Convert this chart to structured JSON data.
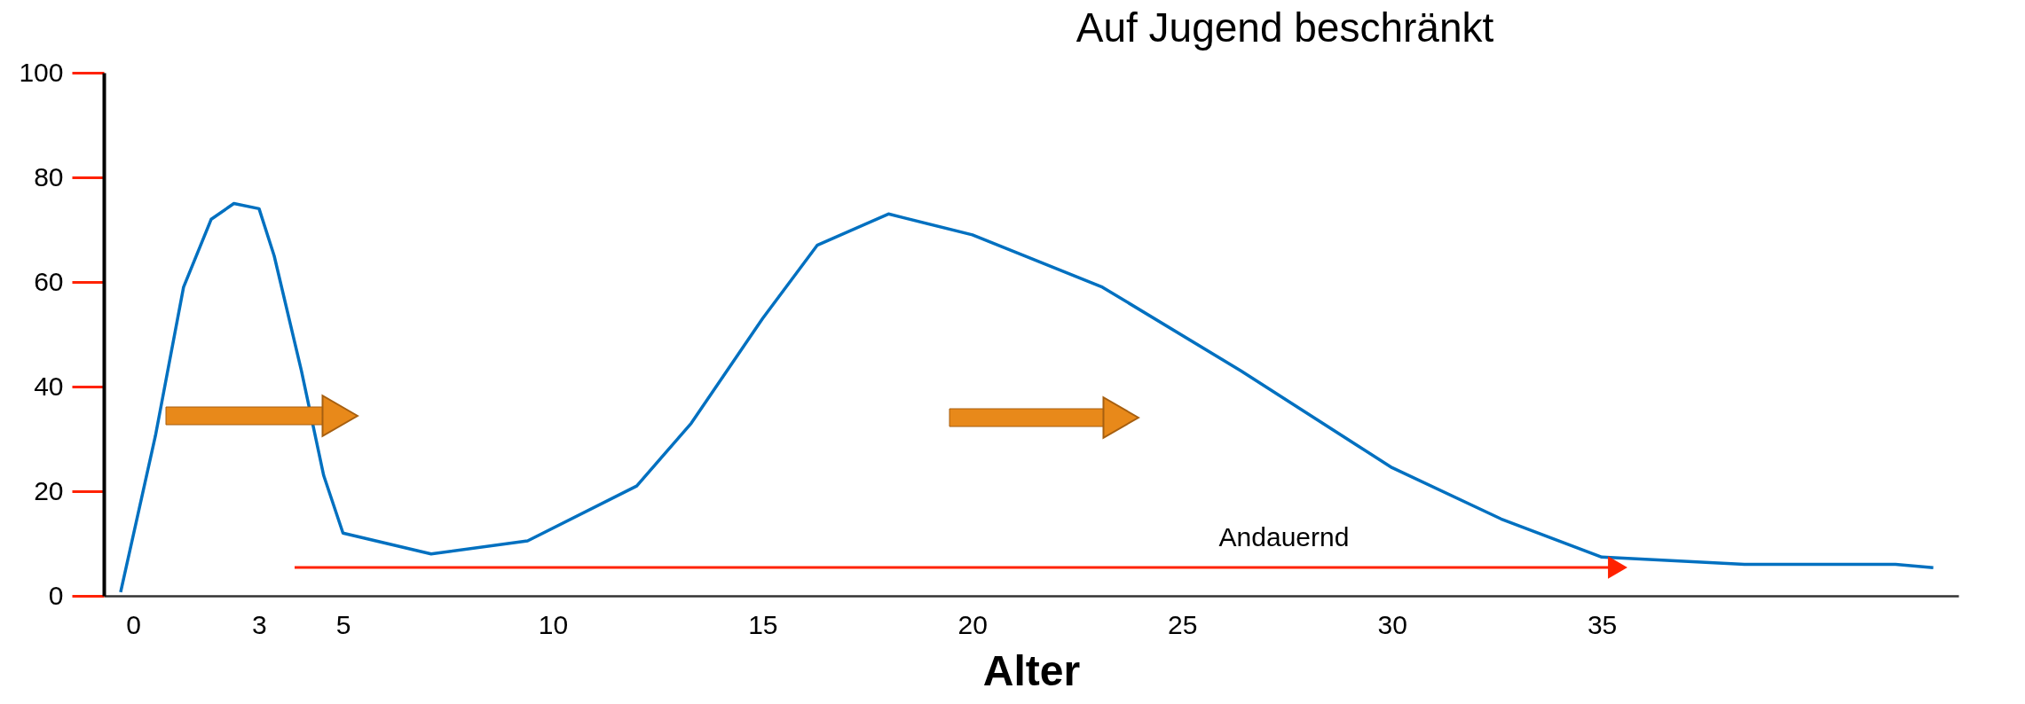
{
  "chart_data": {
    "type": "line",
    "title": "Auf Jugend beschränkt",
    "xlabel": "Alter",
    "x": [
      -0.3,
      0.53,
      1.2,
      1.86,
      2.4,
      3.0,
      3.36,
      4.01,
      4.54,
      5.0,
      7.1,
      9.4,
      12.0,
      13.3,
      15.0,
      16.3,
      18.0,
      20.0,
      23.1,
      26.4,
      30.0,
      32.6,
      35.0,
      38.4,
      42.0,
      42.9
    ],
    "series": [
      {
        "color": "#0070c0",
        "values": [
          0.7,
          30.6,
          59,
          72,
          75,
          74,
          65,
          43,
          23,
          12,
          8,
          10.5,
          21,
          33,
          53,
          67,
          73,
          69,
          59,
          43,
          24.5,
          14.7,
          7.4,
          6,
          6,
          5.4
        ]
      }
    ],
    "xlim": [
      -0.7,
      43.5
    ],
    "xticks": [
      0,
      3,
      5,
      10,
      15,
      20,
      25,
      30,
      35
    ],
    "ylim": [
      0,
      100
    ],
    "yticks": [
      0,
      20,
      40,
      60,
      80,
      100
    ],
    "annotations": [
      "Andauernd"
    ],
    "grid": false,
    "marker": "none",
    "line_style": "solid"
  }
}
